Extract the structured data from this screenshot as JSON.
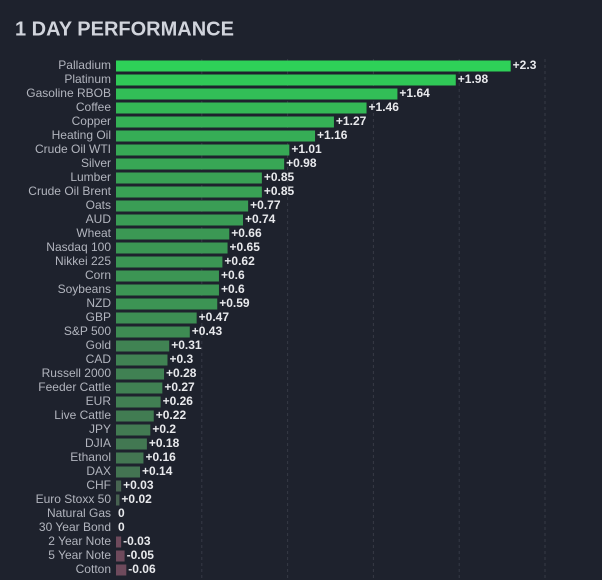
{
  "chart_data": {
    "type": "hbar",
    "title": "1 DAY PERFORMANCE",
    "categories": [
      "Palladium",
      "Platinum",
      "Gasoline RBOB",
      "Coffee",
      "Copper",
      "Heating Oil",
      "Crude Oil WTI",
      "Silver",
      "Lumber",
      "Crude Oil Brent",
      "Oats",
      "AUD",
      "Wheat",
      "Nasdaq 100",
      "Nikkei 225",
      "Corn",
      "Soybeans",
      "NZD",
      "GBP",
      "S&P 500",
      "Gold",
      "CAD",
      "Russell 2000",
      "Feeder Cattle",
      "EUR",
      "Live Cattle",
      "JPY",
      "DJIA",
      "Ethanol",
      "DAX",
      "CHF",
      "Euro Stoxx 50",
      "Natural Gas",
      "30 Year Bond",
      "2 Year Note",
      "5 Year Note",
      "Cotton"
    ],
    "values": [
      2.3,
      1.98,
      1.64,
      1.46,
      1.27,
      1.16,
      1.01,
      0.98,
      0.85,
      0.85,
      0.77,
      0.74,
      0.66,
      0.65,
      0.62,
      0.6,
      0.6,
      0.59,
      0.47,
      0.43,
      0.31,
      0.3,
      0.28,
      0.27,
      0.26,
      0.22,
      0.2,
      0.18,
      0.16,
      0.14,
      0.03,
      0.02,
      0,
      0,
      -0.03,
      -0.05,
      -0.06
    ],
    "value_labels": [
      "+2.3",
      "+1.98",
      "+1.64",
      "+1.46",
      "+1.27",
      "+1.16",
      "+1.01",
      "+0.98",
      "+0.85",
      "+0.85",
      "+0.77",
      "+0.74",
      "+0.66",
      "+0.65",
      "+0.62",
      "+0.6",
      "+0.6",
      "+0.59",
      "+0.47",
      "+0.43",
      "+0.31",
      "+0.3",
      "+0.28",
      "+0.27",
      "+0.26",
      "+0.22",
      "+0.2",
      "+0.18",
      "+0.16",
      "+0.14",
      "+0.03",
      "+0.02",
      "0",
      "0",
      "-0.03",
      "-0.05",
      "-0.06"
    ],
    "color": "#2ed158",
    "color_low": "#4a5650",
    "negative_color": "#6e4a5c",
    "xlim": [
      0,
      2.5
    ],
    "xticks": [
      0.5,
      1,
      1.5,
      2,
      2.5
    ],
    "grid": true
  }
}
